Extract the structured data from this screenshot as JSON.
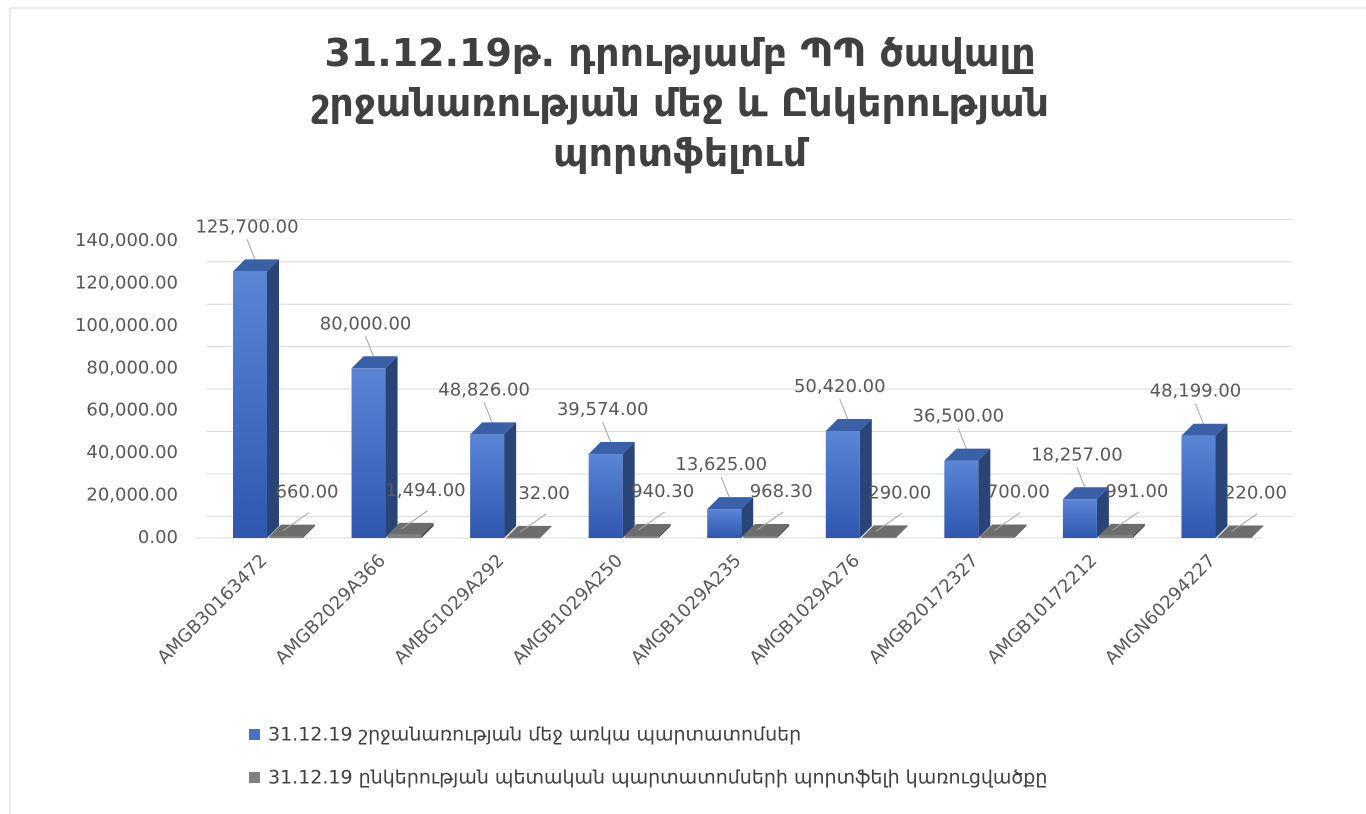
{
  "chart_data": {
    "type": "bar3d",
    "title": "31.12.19թ. դրությամբ ՊՊ ծավալը շրջանառության մեջ և Ընկերության պորտֆելում",
    "categories": [
      "AMGB30163472",
      "AMGB2029A366",
      "AMBG1029A292",
      "AMGB1029A250",
      "AMGB1029A235",
      "AMGB1029A276",
      "AMGB20172327",
      "AMGB10172212",
      "AMGN60294227"
    ],
    "series": [
      {
        "name": "31.12.19  շրջանառության մեջ առկա պարտատոմսեր",
        "color": "#4472c4",
        "values": [
          125700,
          80000,
          48826,
          39574,
          13625,
          50420,
          36500,
          18257,
          48199
        ],
        "value_labels": [
          "125,700.00",
          "80,000.00",
          "48,826.00",
          "39,574.00",
          "13,625.00",
          "50,420.00",
          "36,500.00",
          "18,257.00",
          "48,199.00"
        ]
      },
      {
        "name": "31.12.19  ընկերության պետական պարտատոմսերի պորտֆելի կառուցվածքը",
        "color": "#808080",
        "values": [
          660,
          1494,
          32,
          940.3,
          968.3,
          290,
          700,
          991,
          220
        ],
        "value_labels": [
          "660.00",
          "1,494.00",
          "32.00",
          "940.30",
          "968.30",
          "290.00",
          "700.00",
          "991.00",
          "220.00"
        ]
      }
    ],
    "ylim": [
      0,
      140000
    ],
    "yticks": [
      {
        "value": 0,
        "label": "0.00"
      },
      {
        "value": 20000,
        "label": "20,000.00"
      },
      {
        "value": 40000,
        "label": "40,000.00"
      },
      {
        "value": 60000,
        "label": "60,000.00"
      },
      {
        "value": 80000,
        "label": "80,000.00"
      },
      {
        "value": 100000,
        "label": "100,000.00"
      },
      {
        "value": 120000,
        "label": "120,000.00"
      },
      {
        "value": 140000,
        "label": "140,000.00"
      }
    ],
    "grid": true,
    "legend": "bottom"
  }
}
